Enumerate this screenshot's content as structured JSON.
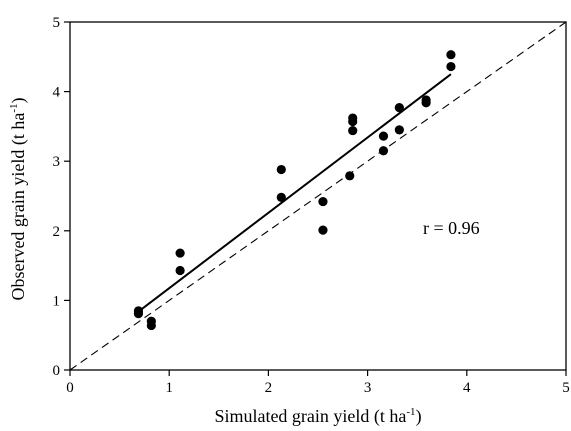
{
  "chart_data": {
    "type": "scatter",
    "title": "",
    "xlabel": "Simulated grain yield (t ha",
    "xlabel_sup": "-1",
    "xlabel_end": ")",
    "ylabel": "Observed grain yield (t ha",
    "ylabel_sup": "-1",
    "ylabel_end": ")",
    "xlim": [
      0,
      5
    ],
    "ylim": [
      0,
      5
    ],
    "xticks": [
      "0",
      "1",
      "2",
      "3",
      "4",
      "5"
    ],
    "yticks": [
      "0",
      "1",
      "2",
      "3",
      "4",
      "5"
    ],
    "grid": false,
    "legend": "none",
    "annotation": "r = 0.96",
    "colors": {
      "points": "#000000",
      "lines": "#000000"
    },
    "series": [
      {
        "points": [
          [
            0.69,
            0.85
          ],
          [
            0.69,
            0.81
          ],
          [
            0.82,
            0.7
          ],
          [
            0.82,
            0.64
          ],
          [
            1.11,
            1.68
          ],
          [
            1.11,
            1.43
          ],
          [
            2.13,
            2.88
          ],
          [
            2.13,
            2.48
          ],
          [
            2.55,
            2.42
          ],
          [
            2.55,
            2.01
          ],
          [
            2.82,
            2.79
          ],
          [
            2.85,
            3.62
          ],
          [
            2.85,
            3.57
          ],
          [
            2.85,
            3.44
          ],
          [
            3.16,
            3.36
          ],
          [
            3.16,
            3.15
          ],
          [
            3.32,
            3.77
          ],
          [
            3.32,
            3.45
          ],
          [
            3.59,
            3.88
          ],
          [
            3.59,
            3.84
          ],
          [
            3.84,
            4.53
          ],
          [
            3.84,
            4.36
          ]
        ]
      }
    ],
    "regression_line": {
      "x": [
        0.69,
        3.84
      ],
      "y": [
        0.84,
        4.25
      ],
      "style": "solid"
    },
    "reference_line": {
      "x": [
        0,
        5
      ],
      "y": [
        0,
        5
      ],
      "style": "dashed"
    }
  }
}
